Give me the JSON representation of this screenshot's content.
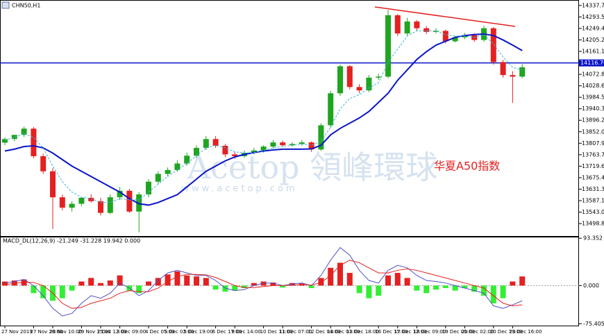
{
  "chart_data": [
    {
      "type": "candlestick",
      "title": "CHN50,H1",
      "categories": [
        "27 Nov 2019",
        null,
        null,
        "27 Nov 20:00",
        null,
        "28 Nov 10:00",
        null,
        null,
        "29 Nov 15:00",
        null,
        "2 Dec 12:00",
        null,
        "3 Dec 09:00",
        null,
        null,
        "4 Dec 05:00",
        null,
        "5 Dec 02:00",
        null,
        "5 Dec 19:00",
        null,
        null,
        "6 Dec 17:00",
        null,
        "9 Dec 14:00",
        null,
        null,
        "10 Dec 11:00",
        null,
        "11 Dec 07:00",
        null,
        null,
        "12 Dec 04:00",
        null,
        "13 Dec 01:00",
        null,
        "13 Dec 18:00",
        null,
        null,
        "16 Dec 15:00",
        null,
        "17 Dec 12:00",
        null,
        "18 Dec 09:00",
        null,
        null,
        "19 Dec 05:00",
        null,
        "20 Dec 02:00",
        null,
        null,
        "20 Dec 19:00",
        null,
        "23 Dec 16:00",
        null
      ],
      "open": [
        13810,
        13824,
        13840,
        13864,
        13758,
        13700,
        13600,
        13560,
        13575,
        13598,
        13585,
        13540,
        13600,
        13625,
        13545,
        13611,
        13660,
        13690,
        13705,
        13730,
        13760,
        13790,
        13824,
        13798,
        13765,
        13758,
        13771,
        13780,
        13795,
        13811,
        13800,
        13805,
        13811,
        13784,
        13877,
        14000,
        14104,
        14024,
        14011,
        14060,
        14064,
        14300,
        14230,
        14276,
        14250,
        14236,
        14240,
        14200,
        14215,
        14223,
        14205,
        14250,
        14120,
        14070,
        14064
      ],
      "high": [
        13830,
        13840,
        13872,
        13870,
        13768,
        13712,
        13610,
        13585,
        13600,
        13612,
        13598,
        13612,
        13640,
        13632,
        13620,
        13670,
        13700,
        13715,
        13742,
        13772,
        13800,
        13836,
        13835,
        13805,
        13775,
        13780,
        13790,
        13800,
        13820,
        13818,
        13812,
        13820,
        13815,
        13885,
        14010,
        14110,
        14108,
        14035,
        14070,
        14075,
        14320,
        14305,
        14290,
        14282,
        14258,
        14250,
        14245,
        14220,
        14232,
        14230,
        14260,
        14255,
        14128,
        14085,
        14112
      ],
      "low": [
        13800,
        13815,
        13832,
        13750,
        13690,
        13478,
        13550,
        13545,
        13565,
        13580,
        13530,
        13535,
        13590,
        13540,
        13465,
        13600,
        13650,
        13680,
        13698,
        13722,
        13752,
        13782,
        13790,
        13755,
        13748,
        13752,
        13765,
        13772,
        13788,
        13795,
        13795,
        13798,
        13775,
        13778,
        13868,
        13990,
        14015,
        14000,
        14005,
        14052,
        14058,
        14220,
        14222,
        14240,
        14228,
        14230,
        14192,
        14195,
        14208,
        14198,
        14198,
        14110,
        14060,
        13963,
        14058
      ],
      "close": [
        13824,
        13840,
        13864,
        13758,
        13700,
        13600,
        13560,
        13575,
        13598,
        13585,
        13540,
        13600,
        13625,
        13545,
        13611,
        13660,
        13690,
        13705,
        13730,
        13760,
        13790,
        13824,
        13798,
        13765,
        13758,
        13771,
        13780,
        13795,
        13811,
        13800,
        13805,
        13811,
        13784,
        13877,
        14000,
        14104,
        14024,
        14011,
        14060,
        14064,
        14300,
        14230,
        14276,
        14250,
        14236,
        14240,
        14200,
        14215,
        14223,
        14205,
        14250,
        14120,
        14070,
        14064,
        14100
      ],
      "up_color": "#1fa51f",
      "down_color": "#e42020",
      "overlays": [
        {
          "color": "#0a14c8",
          "style": "solid",
          "values": [
            13778,
            13785,
            13795,
            13798,
            13790,
            13770,
            13745,
            13720,
            13700,
            13680,
            13660,
            13640,
            13620,
            13595,
            13575,
            13570,
            13580,
            13595,
            13610,
            13640,
            13670,
            13700,
            13720,
            13740,
            13755,
            13765,
            13772,
            13778,
            13782,
            13785,
            13785,
            13785,
            13786,
            13800,
            13840,
            13865,
            13885,
            13905,
            13930,
            13965,
            14000,
            14050,
            14090,
            14130,
            14160,
            14185,
            14200,
            14215,
            14222,
            14226,
            14228,
            14222,
            14205,
            14185,
            14164
          ]
        },
        {
          "color": "#3cb4dc",
          "style": "dashed",
          "values": [
            13820,
            13830,
            13845,
            13830,
            13790,
            13720,
            13660,
            13620,
            13600,
            13595,
            13580,
            13580,
            13595,
            13590,
            13590,
            13620,
            13650,
            13680,
            13705,
            13730,
            13760,
            13790,
            13800,
            13790,
            13775,
            13770,
            13772,
            13780,
            13790,
            13795,
            13800,
            13805,
            13800,
            13815,
            13870,
            13940,
            13980,
            13995,
            14020,
            14040,
            14120,
            14170,
            14220,
            14240,
            14240,
            14240,
            14225,
            14220,
            14220,
            14215,
            14225,
            14190,
            14140,
            14100,
            14090
          ]
        }
      ],
      "ylim": [
        13451,
        14356
      ],
      "yticks": [
        {
          "value": 14337.7,
          "label": "14337.70"
        },
        {
          "value": 14293.55,
          "label": "14293.55"
        },
        {
          "value": 14249.4,
          "label": "14249.40"
        },
        {
          "value": 14205.25,
          "label": "14205.25"
        },
        {
          "value": 14161.1,
          "label": "14161.10"
        },
        {
          "value": 14072.8,
          "label": "14072.80"
        },
        {
          "value": 14028.65,
          "label": "14028.65"
        },
        {
          "value": 13984.5,
          "label": "13984.50"
        },
        {
          "value": 13940.35,
          "label": "13940.35"
        },
        {
          "value": 13896.2,
          "label": "13896.20"
        },
        {
          "value": 13852.05,
          "label": "13852.05"
        },
        {
          "value": 13807.9,
          "label": "13807.90"
        },
        {
          "value": 13763.75,
          "label": "13763.75"
        },
        {
          "value": 13719.6,
          "label": "13719.60"
        },
        {
          "value": 13675.45,
          "label": "13675.45"
        },
        {
          "value": 13631.3,
          "label": "13631.30"
        },
        {
          "value": 13587.15,
          "label": "13587.15"
        },
        {
          "value": 13543,
          "label": "13543.00"
        },
        {
          "value": 13498.85,
          "label": "13498.85"
        }
      ],
      "hline": {
        "value": 14116.7,
        "label": "14116.70",
        "color": "#0a14c8"
      },
      "annotation": "华夏A50指数",
      "watermark": [
        "Acetop 領峰環球",
        "www.acetop.com"
      ]
    },
    {
      "type": "macd",
      "title": "MACD_DL(12,26,9) -21.249 -31.228 19.942 0.000",
      "histogram": [
        8,
        10,
        12,
        -15,
        -25,
        -30,
        -25,
        -10,
        8,
        15,
        5,
        10,
        20,
        -10,
        -15,
        8,
        15,
        22,
        28,
        20,
        18,
        15,
        -8,
        -12,
        -10,
        -5,
        5,
        8,
        6,
        -4,
        5,
        4,
        -5,
        15,
        35,
        45,
        25,
        -15,
        -25,
        -20,
        20,
        25,
        15,
        -10,
        -15,
        -8,
        -5,
        -10,
        -5,
        -12,
        -20,
        -35,
        -25,
        8,
        18
      ],
      "pos_color": "#e42020",
      "neg_color": "#33ee33",
      "series": [
        {
          "color": "#5050c8",
          "values": [
            5,
            8,
            12,
            0,
            -20,
            -45,
            -60,
            -55,
            -35,
            -20,
            -25,
            -15,
            5,
            -5,
            -20,
            -10,
            10,
            25,
            30,
            25,
            20,
            20,
            10,
            -5,
            -10,
            -8,
            0,
            5,
            5,
            0,
            3,
            5,
            0,
            20,
            50,
            75,
            60,
            30,
            10,
            5,
            30,
            40,
            35,
            20,
            10,
            8,
            5,
            0,
            -5,
            -10,
            -15,
            -40,
            -45,
            -38,
            -30
          ]
        },
        {
          "color": "#e42020",
          "values": [
            2,
            4,
            7,
            6,
            0,
            -15,
            -35,
            -45,
            -43,
            -35,
            -30,
            -25,
            -15,
            -10,
            -12,
            -12,
            -5,
            8,
            18,
            22,
            22,
            21,
            16,
            8,
            0,
            -4,
            -4,
            -2,
            0,
            0,
            1,
            2,
            1,
            6,
            20,
            40,
            50,
            45,
            35,
            25,
            25,
            30,
            33,
            30,
            25,
            20,
            15,
            10,
            5,
            0,
            -5,
            -20,
            -35,
            -40,
            -38
          ]
        }
      ],
      "ylim": [
        -79,
        95
      ],
      "yticks": [
        {
          "value": 93.352,
          "label": "93.352"
        },
        {
          "value": 0,
          "label": "0.000"
        },
        {
          "value": -75.405,
          "label": "-75.405"
        }
      ]
    }
  ]
}
